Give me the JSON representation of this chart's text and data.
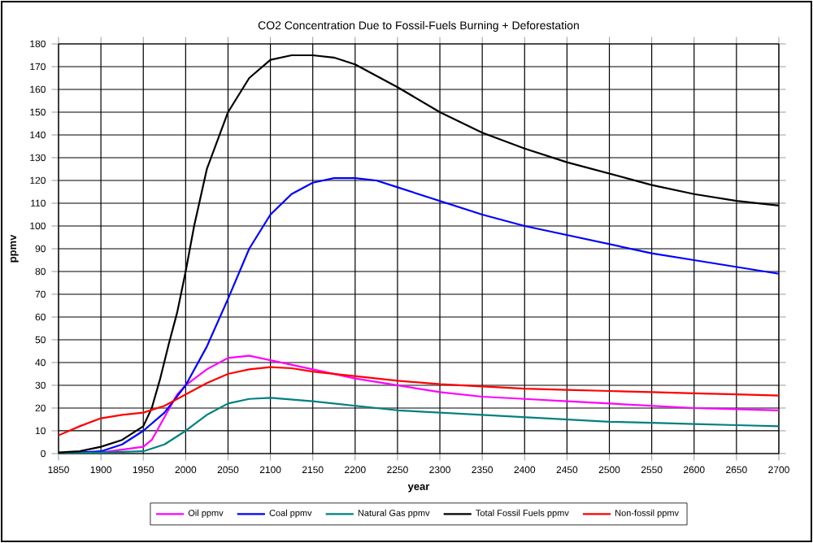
{
  "chart_data": {
    "type": "line",
    "title": "CO2 Concentration  Due to Fossil-Fuels  Burning  + Deforestation",
    "xlabel": "year",
    "ylabel": "ppmv",
    "xlim": [
      1850,
      2700
    ],
    "xticks": [
      1850,
      1900,
      1950,
      2000,
      2050,
      2100,
      2150,
      2200,
      2250,
      2300,
      2350,
      2400,
      2450,
      2500,
      2550,
      2600,
      2650,
      2700
    ],
    "ylim": [
      0,
      180
    ],
    "yticks": [
      0,
      10,
      20,
      30,
      40,
      50,
      60,
      70,
      80,
      90,
      100,
      110,
      120,
      130,
      140,
      150,
      160,
      170,
      180
    ],
    "grid": true,
    "legend": "bottom",
    "marker": "none",
    "line_style": "solid",
    "series": [
      {
        "name": "Oil ppmv",
        "color": "#ff00ff",
        "x": [
          1850,
          1900,
          1950,
          1960,
          1975,
          1990,
          2000,
          2025,
          2050,
          2075,
          2100,
          2150,
          2200,
          2250,
          2300,
          2350,
          2400,
          2450,
          2500,
          2550,
          2600,
          2650,
          2700
        ],
        "values": [
          0,
          0.5,
          3,
          6,
          16,
          26,
          30,
          37,
          42,
          43,
          41,
          37,
          33,
          30,
          27,
          25,
          24,
          23,
          22,
          21,
          20,
          19.5,
          19
        ]
      },
      {
        "name": "Coal ppmv",
        "color": "#0000ff",
        "x": [
          1850,
          1900,
          1925,
          1950,
          1975,
          2000,
          2025,
          2050,
          2075,
          2100,
          2125,
          2150,
          2175,
          2200,
          2225,
          2250,
          2300,
          2350,
          2400,
          2450,
          2500,
          2550,
          2600,
          2650,
          2700
        ],
        "values": [
          0,
          1,
          4,
          10,
          18,
          30,
          47,
          68,
          90,
          105,
          114,
          119,
          121,
          121,
          120,
          117,
          111,
          105,
          100,
          96,
          92,
          88,
          85,
          82,
          79
        ]
      },
      {
        "name": "Natural Gas ppmv",
        "color": "#008080",
        "x": [
          1850,
          1900,
          1950,
          1975,
          2000,
          2025,
          2050,
          2075,
          2100,
          2150,
          2200,
          2250,
          2300,
          2350,
          2400,
          2450,
          2500,
          2550,
          2600,
          2650,
          2700
        ],
        "values": [
          0,
          0.5,
          1,
          4,
          10,
          17,
          22,
          24,
          24.5,
          23,
          21,
          19,
          18,
          17,
          16,
          15,
          14,
          13.5,
          13,
          12.5,
          12
        ]
      },
      {
        "name": "Total Fossil Fuels ppmv",
        "color": "#000000",
        "x": [
          1850,
          1875,
          1900,
          1925,
          1950,
          1960,
          1970,
          1980,
          1990,
          2000,
          2010,
          2025,
          2050,
          2075,
          2100,
          2125,
          2150,
          2175,
          2200,
          2250,
          2300,
          2350,
          2400,
          2450,
          2500,
          2550,
          2600,
          2650,
          2700
        ],
        "values": [
          0.5,
          1,
          3,
          6,
          12,
          20,
          33,
          48,
          62,
          80,
          100,
          125,
          150,
          165,
          173,
          175,
          175,
          174,
          171,
          161,
          150,
          141,
          134,
          128,
          123,
          118,
          114,
          111,
          109
        ]
      },
      {
        "name": "Non-fossil ppmv",
        "color": "#ff0000",
        "x": [
          1850,
          1875,
          1900,
          1925,
          1950,
          1975,
          2000,
          2025,
          2050,
          2075,
          2100,
          2125,
          2150,
          2200,
          2250,
          2300,
          2350,
          2400,
          2450,
          2500,
          2550,
          2600,
          2650,
          2700
        ],
        "values": [
          8,
          12,
          15.5,
          17,
          18,
          21,
          26,
          31,
          35,
          37,
          38,
          37.5,
          36,
          34,
          32,
          30.5,
          29.5,
          28.5,
          28,
          27.5,
          27,
          26.5,
          26,
          25.5
        ]
      }
    ]
  }
}
